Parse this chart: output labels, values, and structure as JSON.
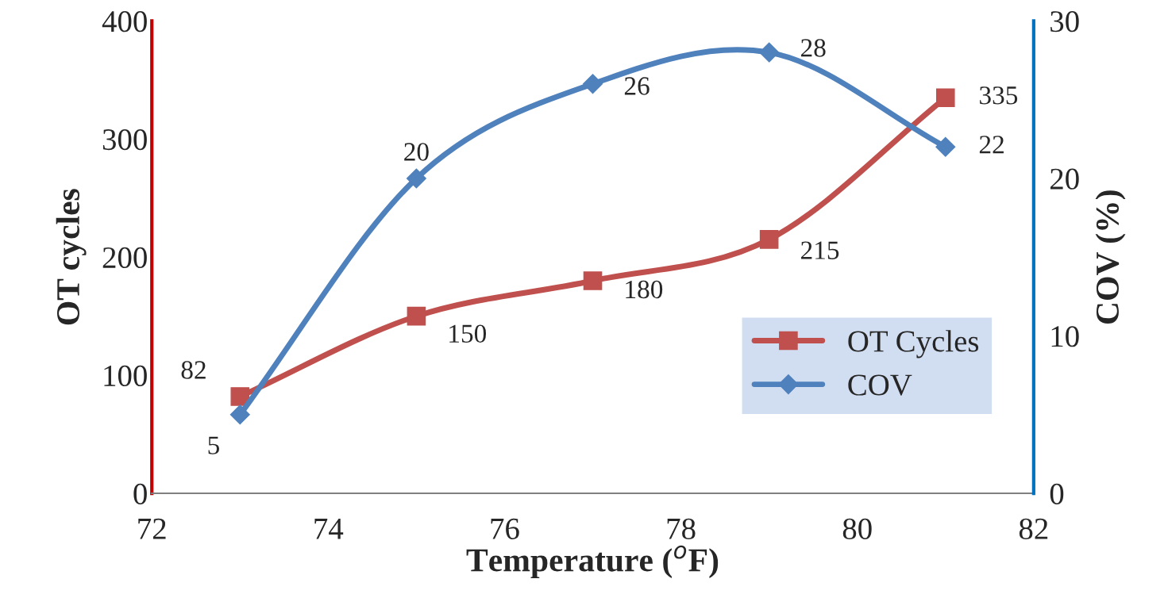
{
  "chart_data": {
    "type": "line",
    "xlabel": "Temperature ($^{o}$F)",
    "ylabel": "OT cycles",
    "y2label": "COV (%)",
    "x": [
      73,
      75,
      77,
      79,
      81
    ],
    "series": [
      {
        "name": "OT Cycles",
        "color": "#c0504d",
        "values": [
          82,
          150,
          180,
          215,
          335
        ],
        "marker": "square"
      },
      {
        "name": "COV",
        "color": "#4f81bd",
        "values": [
          5,
          20,
          26,
          28,
          22
        ],
        "marker": "diamond",
        "axis": "y2"
      }
    ],
    "xlim": [
      72,
      82
    ],
    "xticks": [
      72,
      74,
      76,
      78,
      80,
      82
    ],
    "ylim": [
      0,
      400
    ],
    "yticks": [
      0,
      100,
      200,
      300,
      400
    ],
    "y2lim": [
      0,
      30
    ],
    "y2ticks": [
      0,
      10,
      20,
      30
    ],
    "data_labels": true,
    "legend": "center right",
    "grid": false,
    "line_style": "solid"
  }
}
